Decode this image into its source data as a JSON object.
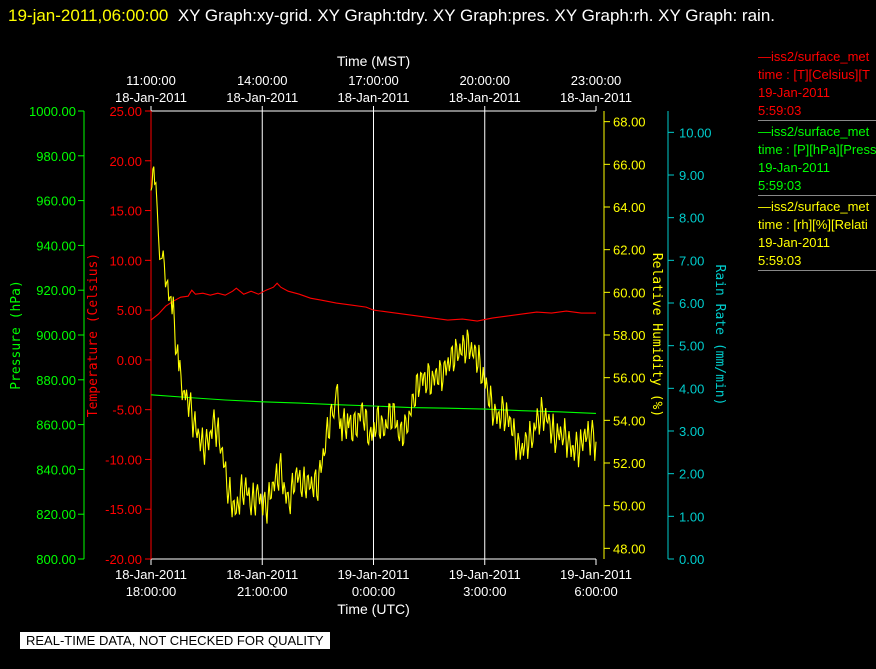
{
  "title": {
    "timestamp": "19-jan-2011,06:00:00",
    "text": "XY Graph:xy-grid.  XY Graph:tdry.  XY Graph:pres.  XY Graph:rh.  XY Graph: rain."
  },
  "banner": "REAL-TIME DATA, NOT CHECKED FOR QUALITY",
  "legend": [
    {
      "line1": "—iss2/surface_met",
      "line2": "time : [T][Celsius][T",
      "line3": "19-Jan-2011",
      "line4": "5:59:03",
      "color": "#ff0000"
    },
    {
      "line1": "—iss2/surface_met",
      "line2": "time : [P][hPa][Press",
      "line3": "19-Jan-2011",
      "line4": "5:59:03",
      "color": "#00ff00"
    },
    {
      "line1": "—iss2/surface_met",
      "line2": "time : [rh][%][Relati",
      "line3": "19-Jan-2011",
      "line4": "5:59:03",
      "color": "#ffff00"
    }
  ],
  "chart_data": {
    "type": "line",
    "x_top_label": "Time (MST)",
    "x_bottom_label": "Time (UTC)",
    "x_range_hours": [
      0,
      12
    ],
    "top_ticks": [
      {
        "h": 0,
        "time": "11:00:00",
        "date": "18-Jan-2011"
      },
      {
        "h": 3,
        "time": "14:00:00",
        "date": "18-Jan-2011"
      },
      {
        "h": 6,
        "time": "17:00:00",
        "date": "18-Jan-2011"
      },
      {
        "h": 9,
        "time": "20:00:00",
        "date": "18-Jan-2011"
      },
      {
        "h": 12,
        "time": "23:00:00",
        "date": "18-Jan-2011"
      }
    ],
    "bottom_ticks": [
      {
        "h": 0,
        "date": "18-Jan-2011",
        "time": "18:00:00"
      },
      {
        "h": 3,
        "date": "18-Jan-2011",
        "time": "21:00:00"
      },
      {
        "h": 6,
        "date": "19-Jan-2011",
        "time": "0:00:00"
      },
      {
        "h": 9,
        "date": "19-Jan-2011",
        "time": "3:00:00"
      },
      {
        "h": 12,
        "date": "19-Jan-2011",
        "time": "6:00:00"
      }
    ],
    "axes": {
      "pressure": {
        "label": "Pressure (hPa)",
        "range": [
          800,
          1000
        ],
        "ticks": [
          "800.00",
          "820.00",
          "840.00",
          "860.00",
          "880.00",
          "900.00",
          "920.00",
          "940.00",
          "960.00",
          "980.00",
          "1000.00"
        ],
        "color": "#00ff00"
      },
      "temperature": {
        "label": "Temperature (Celsius)",
        "range": [
          -20,
          25
        ],
        "ticks": [
          "-20.00",
          "-15.00",
          "-10.00",
          "-5.00",
          "0.00",
          "5.00",
          "10.00",
          "15.00",
          "20.00",
          "25.00"
        ],
        "color": "#ff0000"
      },
      "rh": {
        "label": "Relative Humidity (%)",
        "range": [
          47.5,
          68.5
        ],
        "ticks": [
          "48.00",
          "50.00",
          "52.00",
          "54.00",
          "56.00",
          "58.00",
          "60.00",
          "62.00",
          "64.00",
          "66.00",
          "68.00"
        ],
        "color": "#ffff00"
      },
      "rain": {
        "label": "Rain Rate (mm/min)",
        "range": [
          0,
          10.5
        ],
        "ticks": [
          "0.00",
          "1.00",
          "2.00",
          "3.00",
          "4.00",
          "5.00",
          "6.00",
          "7.00",
          "8.00",
          "9.00",
          "10.00"
        ],
        "color": "#00cccc"
      }
    },
    "series": [
      {
        "axis": "temperature",
        "color": "#ff0000",
        "points": [
          [
            0,
            4.0
          ],
          [
            0.2,
            4.6
          ],
          [
            0.4,
            5.4
          ],
          [
            0.6,
            5.9
          ],
          [
            0.8,
            6.3
          ],
          [
            1.0,
            6.4
          ],
          [
            1.1,
            7.0
          ],
          [
            1.2,
            6.6
          ],
          [
            1.4,
            6.7
          ],
          [
            1.6,
            6.5
          ],
          [
            1.8,
            6.7
          ],
          [
            2.0,
            6.5
          ],
          [
            2.2,
            6.9
          ],
          [
            2.3,
            7.2
          ],
          [
            2.5,
            6.6
          ],
          [
            2.7,
            6.9
          ],
          [
            2.9,
            6.6
          ],
          [
            3.1,
            7.0
          ],
          [
            3.3,
            7.3
          ],
          [
            3.4,
            7.7
          ],
          [
            3.5,
            7.3
          ],
          [
            3.7,
            6.9
          ],
          [
            4.0,
            6.6
          ],
          [
            4.3,
            6.2
          ],
          [
            4.6,
            6.0
          ],
          [
            5.0,
            5.7
          ],
          [
            5.4,
            5.5
          ],
          [
            5.8,
            5.3
          ],
          [
            6.0,
            5.0
          ],
          [
            6.4,
            4.8
          ],
          [
            6.8,
            4.6
          ],
          [
            7.2,
            4.4
          ],
          [
            7.6,
            4.2
          ],
          [
            8.0,
            4.0
          ],
          [
            8.4,
            4.1
          ],
          [
            8.8,
            3.9
          ],
          [
            9.2,
            4.2
          ],
          [
            9.6,
            4.4
          ],
          [
            10.0,
            4.6
          ],
          [
            10.4,
            4.8
          ],
          [
            10.8,
            4.7
          ],
          [
            11.2,
            4.9
          ],
          [
            11.6,
            4.7
          ],
          [
            12.0,
            4.7
          ]
        ]
      },
      {
        "axis": "pressure",
        "color": "#00ff00",
        "points": [
          [
            0,
            873.3
          ],
          [
            1,
            872.1
          ],
          [
            2,
            871.0
          ],
          [
            3,
            870.2
          ],
          [
            4,
            869.6
          ],
          [
            5,
            868.9
          ],
          [
            6,
            868.3
          ],
          [
            7,
            867.6
          ],
          [
            8,
            867.3
          ],
          [
            9,
            866.9
          ],
          [
            10,
            866.2
          ],
          [
            11,
            865.7
          ],
          [
            12,
            865.0
          ]
        ]
      },
      {
        "axis": "rh",
        "color": "#ffff00",
        "noisy": true,
        "amplitude": 0.6,
        "points": [
          [
            0,
            64.5
          ],
          [
            0.05,
            67.0
          ],
          [
            0.1,
            65.0
          ],
          [
            0.2,
            63.0
          ],
          [
            0.3,
            61.5
          ],
          [
            0.45,
            60.0
          ],
          [
            0.6,
            58.5
          ],
          [
            0.75,
            56.0
          ],
          [
            0.9,
            55.0
          ],
          [
            1.1,
            54.0
          ],
          [
            1.3,
            53.5
          ],
          [
            1.5,
            53.0
          ],
          [
            1.7,
            53.5
          ],
          [
            1.9,
            52.5
          ],
          [
            2.1,
            51.0
          ],
          [
            2.3,
            50.0
          ],
          [
            2.5,
            50.5
          ],
          [
            2.7,
            50.0
          ],
          [
            2.9,
            51.0
          ],
          [
            3.1,
            50.0
          ],
          [
            3.3,
            50.5
          ],
          [
            3.5,
            51.5
          ],
          [
            3.7,
            50.5
          ],
          [
            3.9,
            51.5
          ],
          [
            4.1,
            50.5
          ],
          [
            4.3,
            51.0
          ],
          [
            4.5,
            51.5
          ],
          [
            4.7,
            53.0
          ],
          [
            4.9,
            54.0
          ],
          [
            5.0,
            55.5
          ],
          [
            5.15,
            54.0
          ],
          [
            5.3,
            54.5
          ],
          [
            5.5,
            53.5
          ],
          [
            5.7,
            54.0
          ],
          [
            5.9,
            53.2
          ],
          [
            6.1,
            54.5
          ],
          [
            6.3,
            53.5
          ],
          [
            6.5,
            54.0
          ],
          [
            6.7,
            53.5
          ],
          [
            6.9,
            54.2
          ],
          [
            7.1,
            55.0
          ],
          [
            7.3,
            55.5
          ],
          [
            7.5,
            56.0
          ],
          [
            7.7,
            56.5
          ],
          [
            7.9,
            56.0
          ],
          [
            8.1,
            56.5
          ],
          [
            8.3,
            57.5
          ],
          [
            8.5,
            58.0
          ],
          [
            8.7,
            57.0
          ],
          [
            8.9,
            56.0
          ],
          [
            9.1,
            55.5
          ],
          [
            9.3,
            54.5
          ],
          [
            9.5,
            54.0
          ],
          [
            9.7,
            53.5
          ],
          [
            9.9,
            53.0
          ],
          [
            10.1,
            53.2
          ],
          [
            10.3,
            53.0
          ],
          [
            10.5,
            54.0
          ],
          [
            10.7,
            54.5
          ],
          [
            10.9,
            53.5
          ],
          [
            11.1,
            53.0
          ],
          [
            11.3,
            52.5
          ],
          [
            11.5,
            53.0
          ],
          [
            11.7,
            53.5
          ],
          [
            11.9,
            52.8
          ],
          [
            12.0,
            53.0
          ]
        ]
      }
    ]
  }
}
